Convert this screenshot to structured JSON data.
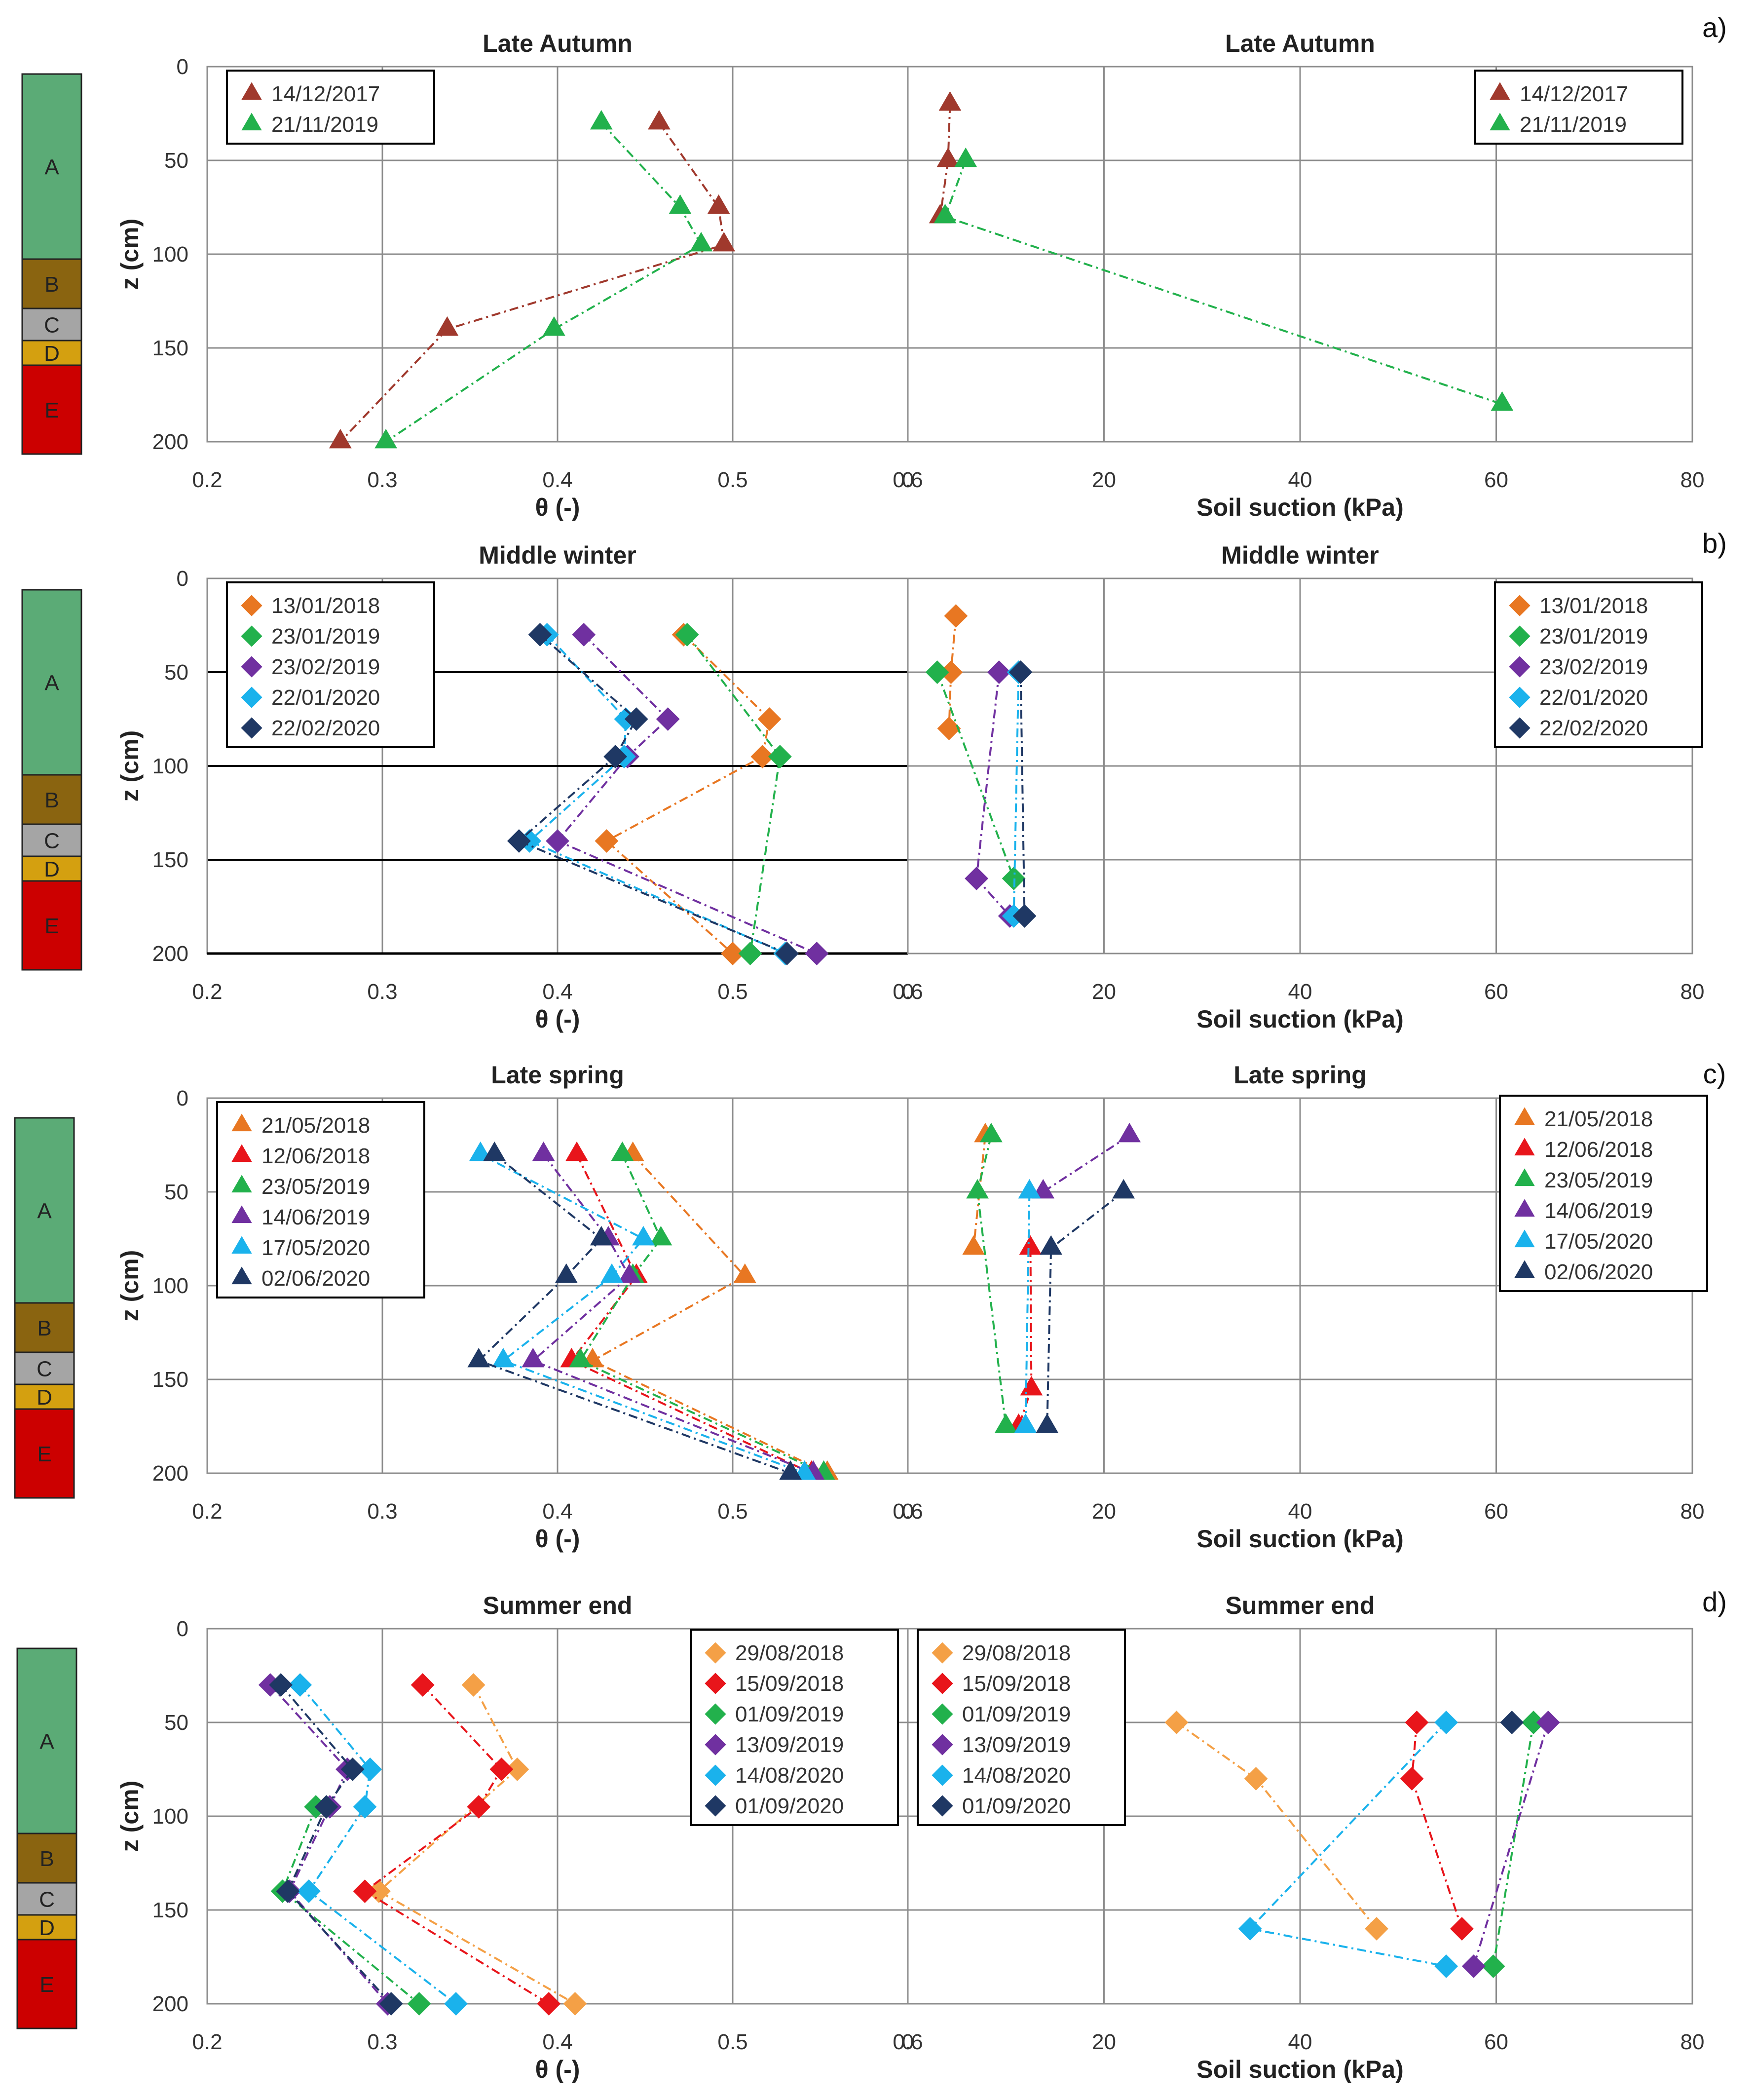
{
  "figure": {
    "panel_letters": [
      "a)",
      "b)",
      "c)",
      "d)"
    ],
    "layers": [
      "A",
      "B",
      "C",
      "D",
      "E"
    ],
    "layer_colors": [
      "#5bab76",
      "#8a6410",
      "#a5a5a5",
      "#d4a010",
      "#cc0000"
    ]
  },
  "colors": {
    "14/12/2017": "#a0392d",
    "21/11/2019": "#22b14c",
    "13/01/2018": "#e87722",
    "23/01/2019": "#22b14c",
    "23/02/2019": "#7030a0",
    "22/01/2020": "#1ab2ec",
    "22/02/2020": "#1f3864",
    "21/05/2018": "#e87722",
    "12/06/2018": "#e8151b",
    "23/05/2019": "#22b14c",
    "14/06/2019": "#7030a0",
    "17/05/2020": "#1ab2ec",
    "02/06/2020": "#1f3864",
    "29/08/2018": "#f4a046",
    "15/09/2018": "#e8151b",
    "01/09/2019": "#22b14c",
    "13/09/2019": "#7030a0",
    "14/08/2020": "#1ab2ec",
    "01/09/2020": "#1f3864"
  },
  "chart_data": [
    {
      "type": "scatter",
      "id": "a-theta",
      "title": "Late Autumn",
      "xlabel": "θ (-)",
      "ylabel": "z (cm)",
      "xlim": [
        0.2,
        0.6
      ],
      "ylim": [
        0,
        200
      ],
      "xticks": [
        "0.2",
        "0.3",
        "0.4",
        "0.5",
        "0.6"
      ],
      "yticks": [
        "0",
        "50",
        "100",
        "150",
        "200"
      ],
      "marker": "triangle",
      "legend_pos": "top-left",
      "border_horizontal_grid": false,
      "series": [
        {
          "name": "14/12/2017",
          "x": [
            0.458,
            0.492,
            0.495,
            0.337,
            0.276
          ],
          "y": [
            30,
            75,
            95,
            140,
            200
          ]
        },
        {
          "name": "21/11/2019",
          "x": [
            0.425,
            0.47,
            0.482,
            0.398,
            0.302
          ],
          "y": [
            30,
            75,
            95,
            140,
            200
          ]
        }
      ]
    },
    {
      "type": "scatter",
      "id": "a-suction",
      "title": "Late Autumn",
      "xlabel": "Soil suction (kPa)",
      "ylabel": "",
      "xlim": [
        0,
        80
      ],
      "ylim": [
        0,
        200
      ],
      "xticks": [
        "0",
        "20",
        "40",
        "60",
        "80"
      ],
      "yticks": [],
      "marker": "triangle",
      "legend_pos": "top-right",
      "series": [
        {
          "name": "14/12/2017",
          "x": [
            4.3,
            4.1,
            3.3
          ],
          "y": [
            20,
            50,
            80
          ]
        },
        {
          "name": "21/11/2019",
          "x": [
            5.9,
            3.8,
            60.6
          ],
          "y": [
            50,
            80,
            180
          ]
        }
      ]
    },
    {
      "type": "scatter",
      "id": "b-theta",
      "title": "Middle winter",
      "xlabel": "θ (-)",
      "ylabel": "z (cm)",
      "xlim": [
        0.2,
        0.6
      ],
      "ylim": [
        0,
        200
      ],
      "xticks": [
        "0.2",
        "0.3",
        "0.4",
        "0.5",
        "0.6"
      ],
      "yticks": [
        "0",
        "50",
        "100",
        "150",
        "200"
      ],
      "marker": "diamond",
      "legend_pos": "top-left",
      "dark_horizontal_grid": true,
      "series": [
        {
          "name": "13/01/2018",
          "x": [
            0.472,
            0.521,
            0.517,
            0.428,
            0.5
          ],
          "y": [
            30,
            75,
            95,
            140,
            200
          ]
        },
        {
          "name": "23/01/2019",
          "x": [
            0.474,
            0.527,
            0.51
          ],
          "y": [
            30,
            95,
            200
          ]
        },
        {
          "name": "23/02/2019",
          "x": [
            0.415,
            0.463,
            0.44,
            0.4,
            0.548
          ],
          "y": [
            30,
            75,
            95,
            140,
            200
          ]
        },
        {
          "name": "22/01/2020",
          "x": [
            0.394,
            0.439,
            0.438,
            0.384,
            0.53
          ],
          "y": [
            30,
            75,
            95,
            140,
            200
          ]
        },
        {
          "name": "22/02/2020",
          "x": [
            0.39,
            0.445,
            0.433,
            0.378,
            0.531
          ],
          "y": [
            30,
            75,
            95,
            140,
            200
          ]
        }
      ]
    },
    {
      "type": "scatter",
      "id": "b-suction",
      "title": "Middle winter",
      "xlabel": "Soil suction (kPa)",
      "ylabel": "",
      "xlim": [
        0,
        80
      ],
      "ylim": [
        0,
        200
      ],
      "xticks": [
        "0",
        "20",
        "40",
        "60",
        "80"
      ],
      "yticks": [],
      "marker": "diamond",
      "legend_pos": "top-right",
      "series": [
        {
          "name": "13/01/2018",
          "x": [
            4.9,
            4.4,
            4.2
          ],
          "y": [
            20,
            50,
            80
          ]
        },
        {
          "name": "23/01/2019",
          "x": [
            3.0,
            10.8
          ],
          "y": [
            50,
            160
          ]
        },
        {
          "name": "23/02/2019",
          "x": [
            9.3,
            7.0,
            10.4
          ],
          "y": [
            50,
            160,
            180
          ]
        },
        {
          "name": "22/01/2020",
          "x": [
            11.3,
            10.8
          ],
          "y": [
            50,
            180
          ]
        },
        {
          "name": "22/02/2020",
          "x": [
            11.5,
            11.9
          ],
          "y": [
            50,
            180
          ]
        }
      ]
    },
    {
      "type": "scatter",
      "id": "c-theta",
      "title": "Late spring",
      "xlabel": "θ (-)",
      "ylabel": "z (cm)",
      "xlim": [
        0.2,
        0.6
      ],
      "ylim": [
        0,
        200
      ],
      "xticks": [
        "0.2",
        "0.3",
        "0.4",
        "0.5",
        "0.6"
      ],
      "yticks": [
        "0",
        "50",
        "100",
        "150",
        "200"
      ],
      "marker": "triangle",
      "legend_pos": "top-left",
      "series": [
        {
          "name": "21/05/2018",
          "x": [
            0.443,
            0.507,
            0.42,
            0.554
          ],
          "y": [
            30,
            95,
            140,
            200
          ]
        },
        {
          "name": "12/06/2018",
          "x": [
            0.411,
            0.445,
            0.408,
            0.545
          ],
          "y": [
            30,
            95,
            140,
            200
          ]
        },
        {
          "name": "23/05/2019",
          "x": [
            0.437,
            0.459,
            0.443,
            0.413,
            0.552
          ],
          "y": [
            30,
            75,
            95,
            140,
            200
          ]
        },
        {
          "name": "14/06/2019",
          "x": [
            0.392,
            0.429,
            0.441,
            0.386,
            0.546
          ],
          "y": [
            30,
            75,
            95,
            140,
            200
          ]
        },
        {
          "name": "17/05/2020",
          "x": [
            0.356,
            0.449,
            0.431,
            0.369,
            0.541
          ],
          "y": [
            30,
            75,
            95,
            140,
            200
          ]
        },
        {
          "name": "02/06/2020",
          "x": [
            0.364,
            0.425,
            0.405,
            0.355,
            0.533
          ],
          "y": [
            30,
            75,
            95,
            140,
            200
          ]
        }
      ]
    },
    {
      "type": "scatter",
      "id": "c-suction",
      "title": "Late spring",
      "xlabel": "Soil suction (kPa)",
      "ylabel": "",
      "xlim": [
        0,
        80
      ],
      "ylim": [
        0,
        200
      ],
      "xticks": [
        "0",
        "20",
        "40",
        "60",
        "80"
      ],
      "yticks": [],
      "marker": "triangle",
      "legend_pos": "top-right",
      "series": [
        {
          "name": "21/05/2018",
          "x": [
            7.9,
            6.7
          ],
          "y": [
            20,
            80
          ]
        },
        {
          "name": "12/06/2018",
          "x": [
            12.5,
            12.6,
            11.3
          ],
          "y": [
            80,
            155,
            175
          ]
        },
        {
          "name": "23/05/2019",
          "x": [
            8.5,
            7.1,
            10.0
          ],
          "y": [
            20,
            50,
            175
          ]
        },
        {
          "name": "14/06/2019",
          "x": [
            22.6,
            13.8
          ],
          "y": [
            20,
            50
          ]
        },
        {
          "name": "17/05/2020",
          "x": [
            12.4,
            12.0
          ],
          "y": [
            50,
            175
          ]
        },
        {
          "name": "02/06/2020",
          "x": [
            22.0,
            14.6,
            14.2
          ],
          "y": [
            50,
            80,
            175
          ]
        }
      ]
    },
    {
      "type": "scatter",
      "id": "d-theta",
      "title": "Summer end",
      "xlabel": "θ (-)",
      "ylabel": "z (cm)",
      "xlim": [
        0.2,
        0.6
      ],
      "ylim": [
        0,
        200
      ],
      "xticks": [
        "0.2",
        "0.3",
        "0.4",
        "0.5",
        "0.6"
      ],
      "yticks": [
        "0",
        "50",
        "100",
        "150",
        "200"
      ],
      "marker": "diamond",
      "legend_pos": "top-right",
      "series": [
        {
          "name": "29/08/2018",
          "x": [
            0.352,
            0.377,
            0.298,
            0.41
          ],
          "y": [
            30,
            75,
            140,
            200
          ]
        },
        {
          "name": "15/09/2018",
          "x": [
            0.323,
            0.368,
            0.355,
            0.29,
            0.395
          ],
          "y": [
            30,
            75,
            95,
            140,
            200
          ]
        },
        {
          "name": "01/09/2019",
          "x": [
            0.262,
            0.243,
            0.321
          ],
          "y": [
            95,
            140,
            200
          ]
        },
        {
          "name": "13/09/2019",
          "x": [
            0.236,
            0.28,
            0.27,
            0.247,
            0.303
          ],
          "y": [
            30,
            75,
            95,
            140,
            200
          ]
        },
        {
          "name": "14/08/2020",
          "x": [
            0.253,
            0.293,
            0.29,
            0.258,
            0.342
          ],
          "y": [
            30,
            75,
            95,
            140,
            200
          ]
        },
        {
          "name": "01/09/2020",
          "x": [
            0.242,
            0.283,
            0.268,
            0.246,
            0.305
          ],
          "y": [
            30,
            75,
            95,
            140,
            200
          ]
        }
      ]
    },
    {
      "type": "scatter",
      "id": "d-suction",
      "title": "Summer end",
      "xlabel": "Soil suction (kPa)",
      "ylabel": "",
      "xlim": [
        0,
        80
      ],
      "ylim": [
        0,
        200
      ],
      "xticks": [
        "0",
        "20",
        "40",
        "60",
        "80"
      ],
      "yticks": [],
      "marker": "diamond",
      "legend_pos": "top-left",
      "series": [
        {
          "name": "29/08/2018",
          "x": [
            27.4,
            35.5,
            47.8
          ],
          "y": [
            50,
            80,
            160
          ]
        },
        {
          "name": "15/09/2018",
          "x": [
            51.9,
            51.4,
            56.5
          ],
          "y": [
            50,
            80,
            160
          ]
        },
        {
          "name": "01/09/2019",
          "x": [
            63.8,
            59.7
          ],
          "y": [
            50,
            180
          ]
        },
        {
          "name": "13/09/2019",
          "x": [
            65.3,
            57.7
          ],
          "y": [
            50,
            180
          ]
        },
        {
          "name": "14/08/2020",
          "x": [
            54.9,
            34.9,
            54.9
          ],
          "y": [
            50,
            160,
            180
          ]
        },
        {
          "name": "01/09/2020",
          "x": [
            61.6
          ],
          "y": [
            50
          ]
        }
      ]
    }
  ]
}
